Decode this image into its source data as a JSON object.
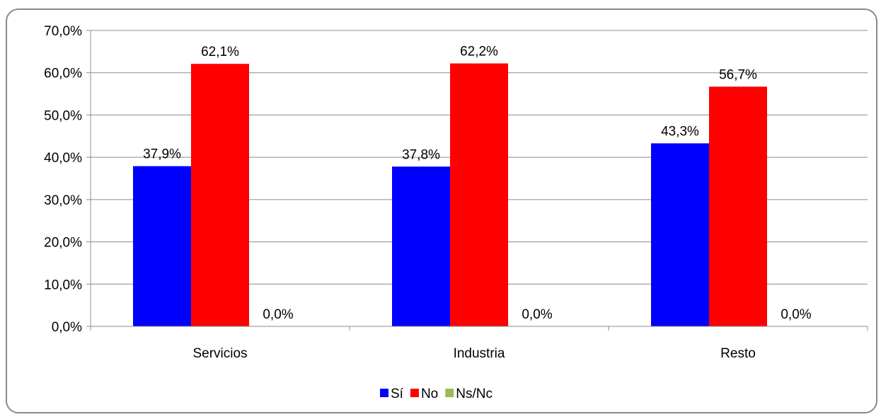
{
  "chart_data": {
    "type": "bar",
    "categories": [
      "Servicios",
      "Industria",
      "Resto"
    ],
    "series": [
      {
        "name": "Sí",
        "color": "#0000FF",
        "values": [
          37.9,
          37.8,
          43.3
        ],
        "labels": [
          "37,9%",
          "37,8%",
          "43,3%"
        ]
      },
      {
        "name": "No",
        "color": "#FF0000",
        "values": [
          62.1,
          62.2,
          56.7
        ],
        "labels": [
          "62,1%",
          "62,2%",
          "56,7%"
        ]
      },
      {
        "name": "Ns/Nc",
        "color": "#9BBB59",
        "values": [
          0.0,
          0.0,
          0.0
        ],
        "labels": [
          "0,0%",
          "0,0%",
          "0,0%"
        ]
      }
    ],
    "yticks": [
      "0,0%",
      "10,0%",
      "20,0%",
      "30,0%",
      "40,0%",
      "50,0%",
      "60,0%",
      "70,0%"
    ],
    "ylim": [
      0,
      70
    ],
    "grid": true,
    "legend": "bottom",
    "title": "",
    "xlabel": "",
    "ylabel": ""
  }
}
